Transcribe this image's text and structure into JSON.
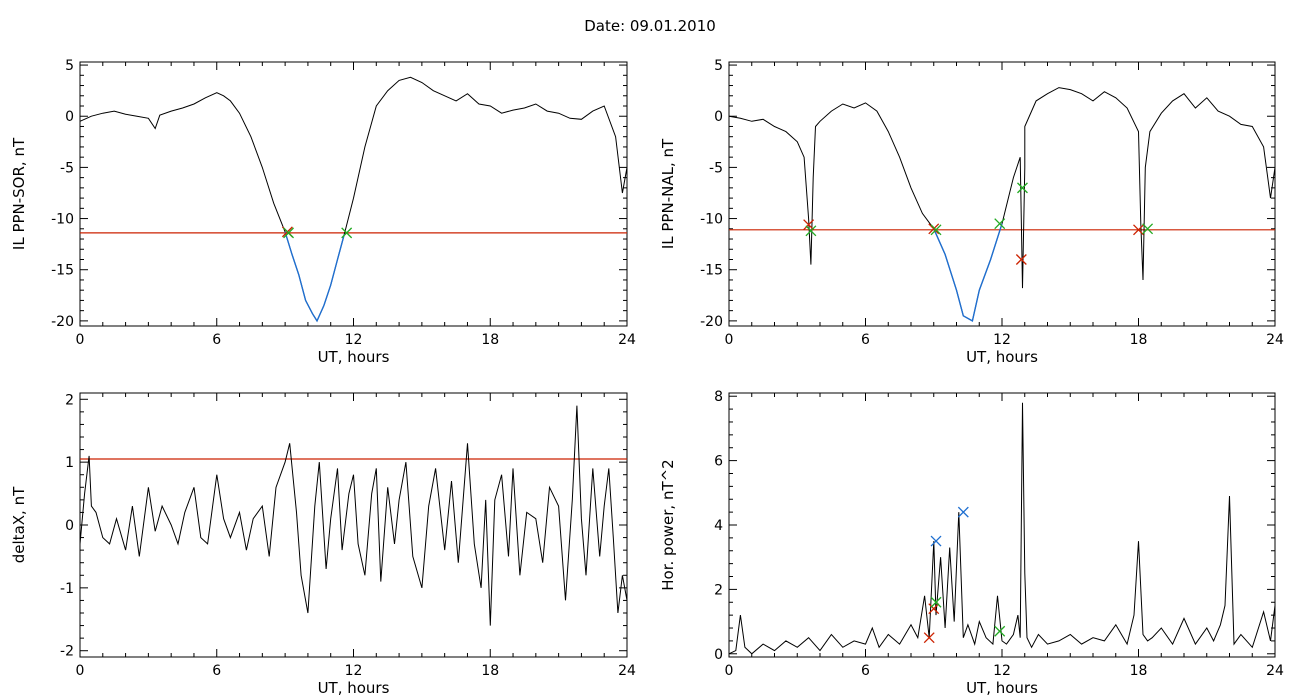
{
  "header": {
    "date_label": "Date:  09.01.2010"
  },
  "colors": {
    "data": "#000000",
    "threshold": "#cc2200",
    "highlight": "#1f6fd0",
    "cross_red": "#cc2200",
    "cross_green": "#22aa22",
    "cross_blue": "#1f6fd0"
  },
  "chart_data": [
    {
      "type": "line",
      "title": "",
      "xlabel": "UT, hours",
      "ylabel": "IL PPN-SOR, nT",
      "xlim": [
        0,
        24
      ],
      "ylim": [
        -20.5,
        5.3
      ],
      "xticks": [
        0,
        6,
        12,
        18,
        24
      ],
      "yticks": [
        -20,
        -15,
        -10,
        -5,
        0,
        5
      ],
      "threshold": -11.4,
      "series": [
        {
          "x": [
            0,
            0.5,
            1,
            1.5,
            2,
            2.5,
            3,
            3.3,
            3.5,
            4,
            4.5,
            5,
            5.5,
            6,
            6.3,
            6.6,
            7,
            7.5,
            8,
            8.5,
            9,
            9.3,
            9.6,
            9.9,
            10.2,
            10.4,
            10.7,
            11,
            11.3,
            11.6,
            12,
            12.5,
            13,
            13.5,
            14,
            14.5,
            15,
            15.5,
            16,
            16.5,
            17,
            17.5,
            18,
            18.5,
            19,
            19.5,
            20,
            20.5,
            21,
            21.5,
            22,
            22.5,
            23,
            23.5,
            23.8,
            24
          ],
          "y": [
            -0.5,
            0,
            0.3,
            0.5,
            0.2,
            0,
            -0.2,
            -1.2,
            0.1,
            0.5,
            0.8,
            1.2,
            1.8,
            2.3,
            2,
            1.5,
            0.3,
            -2,
            -5,
            -8.5,
            -11.3,
            -13.5,
            -15.5,
            -18,
            -19.3,
            -20,
            -18.5,
            -16.5,
            -14,
            -11.5,
            -8,
            -3,
            1,
            2.5,
            3.5,
            3.8,
            3.3,
            2.5,
            2,
            1.5,
            2.2,
            1.2,
            1,
            0.3,
            0.6,
            0.8,
            1.2,
            0.5,
            0.3,
            -0.2,
            -0.3,
            0.5,
            1,
            -2,
            -7.5,
            -5
          ]
        }
      ],
      "highlight_range": [
        9,
        11.7
      ],
      "markers": [
        {
          "x": 9.1,
          "y": -11.3,
          "color": "cross_red"
        },
        {
          "x": 9.15,
          "y": -11.4,
          "color": "cross_green"
        },
        {
          "x": 11.7,
          "y": -11.4,
          "color": "cross_green"
        }
      ]
    },
    {
      "type": "line",
      "title": "",
      "xlabel": "UT, hours",
      "ylabel": "IL PPN-NAL, nT",
      "xlim": [
        0,
        24
      ],
      "ylim": [
        -20.5,
        5.3
      ],
      "xticks": [
        0,
        6,
        12,
        18,
        24
      ],
      "yticks": [
        -20,
        -15,
        -10,
        -5,
        0,
        5
      ],
      "threshold": -11.1,
      "series": [
        {
          "x": [
            0,
            0.5,
            1,
            1.5,
            2,
            2.5,
            3,
            3.3,
            3.5,
            3.6,
            3.7,
            3.8,
            4,
            4.5,
            5,
            5.5,
            6,
            6.5,
            7,
            7.5,
            8,
            8.5,
            9,
            9.5,
            10,
            10.3,
            10.7,
            11,
            11.5,
            12,
            12.5,
            12.8,
            12.9,
            13,
            13,
            13.5,
            14,
            14.5,
            15,
            15.5,
            16,
            16.5,
            17,
            17.5,
            18,
            18.1,
            18.2,
            18.3,
            18.5,
            19,
            19.5,
            20,
            20.5,
            21,
            21.5,
            22,
            22.5,
            23,
            23.5,
            23.8,
            24
          ],
          "y": [
            0,
            -0.2,
            -0.5,
            -0.3,
            -1,
            -1.5,
            -2.5,
            -4,
            -10,
            -14.5,
            -6,
            -1,
            -0.5,
            0.5,
            1.2,
            0.8,
            1.3,
            0.5,
            -1.5,
            -4,
            -7,
            -9.5,
            -11,
            -13.5,
            -17,
            -19.5,
            -20,
            -17,
            -14,
            -10.5,
            -6,
            -4,
            -16.8,
            -5,
            -1,
            1.5,
            2.2,
            2.8,
            2.6,
            2.2,
            1.5,
            2.4,
            1.8,
            0.8,
            -1.5,
            -10.5,
            -16,
            -5,
            -1.5,
            0.3,
            1.5,
            2.2,
            0.8,
            1.8,
            0.5,
            0,
            -0.8,
            -1,
            -3,
            -8,
            -5
          ]
        }
      ],
      "highlight_range": [
        9,
        12
      ],
      "markers": [
        {
          "x": 3.5,
          "y": -10.6,
          "color": "cross_red"
        },
        {
          "x": 3.6,
          "y": -11.2,
          "color": "cross_green"
        },
        {
          "x": 9.0,
          "y": -11.0,
          "color": "cross_red"
        },
        {
          "x": 9.1,
          "y": -11.1,
          "color": "cross_green"
        },
        {
          "x": 11.9,
          "y": -10.5,
          "color": "cross_green"
        },
        {
          "x": 12.9,
          "y": -7.0,
          "color": "cross_green"
        },
        {
          "x": 12.85,
          "y": -14.0,
          "color": "cross_red"
        },
        {
          "x": 18.0,
          "y": -11.1,
          "color": "cross_red"
        },
        {
          "x": 18.4,
          "y": -11.0,
          "color": "cross_green"
        }
      ]
    },
    {
      "type": "line",
      "title": "",
      "xlabel": "UT, hours",
      "ylabel": "deltaX, nT",
      "xlim": [
        0,
        24
      ],
      "ylim": [
        -2.1,
        2.1
      ],
      "xticks": [
        0,
        6,
        12,
        18,
        24
      ],
      "yticks": [
        -2,
        -1,
        0,
        1,
        2
      ],
      "threshold": 1.05,
      "series": [
        {
          "x": [
            0,
            0.2,
            0.4,
            0.5,
            0.7,
            1,
            1.3,
            1.6,
            2,
            2.3,
            2.6,
            3,
            3.3,
            3.6,
            4,
            4.3,
            4.6,
            5,
            5.3,
            5.6,
            6,
            6.3,
            6.6,
            7,
            7.3,
            7.6,
            8,
            8.3,
            8.6,
            9,
            9.2,
            9.5,
            9.7,
            10,
            10.3,
            10.5,
            10.8,
            11,
            11.3,
            11.5,
            11.8,
            12,
            12.2,
            12.5,
            12.8,
            13,
            13.2,
            13.5,
            13.8,
            14,
            14.3,
            14.6,
            15,
            15.3,
            15.6,
            16,
            16.3,
            16.6,
            17,
            17.3,
            17.6,
            17.8,
            18,
            18.2,
            18.5,
            18.8,
            19,
            19.3,
            19.6,
            20,
            20.3,
            20.6,
            21,
            21.3,
            21.6,
            21.8,
            22,
            22.2,
            22.5,
            22.8,
            23,
            23.2,
            23.4,
            23.6,
            23.8,
            24
          ],
          "y": [
            -0.3,
            0.5,
            1.1,
            0.3,
            0.2,
            -0.2,
            -0.3,
            0.1,
            -0.4,
            0.3,
            -0.5,
            0.6,
            -0.1,
            0.3,
            0,
            -0.3,
            0.2,
            0.6,
            -0.2,
            -0.3,
            0.8,
            0.1,
            -0.2,
            0.2,
            -0.4,
            0.1,
            0.3,
            -0.5,
            0.6,
            1.0,
            1.3,
            0.2,
            -0.8,
            -1.4,
            0.3,
            1.0,
            -0.7,
            0.1,
            0.9,
            -0.4,
            0.5,
            0.8,
            -0.3,
            -0.8,
            0.5,
            0.9,
            -0.9,
            0.6,
            -0.3,
            0.4,
            1.0,
            -0.5,
            -1.0,
            0.3,
            0.9,
            -0.4,
            0.7,
            -0.6,
            1.3,
            -0.3,
            -1.0,
            0.4,
            -1.6,
            0.4,
            0.8,
            -0.5,
            0.9,
            -0.8,
            0.2,
            0.1,
            -0.6,
            0.6,
            0.3,
            -1.2,
            0.4,
            1.9,
            0.1,
            -0.8,
            0.9,
            -0.5,
            0.3,
            0.9,
            -0.2,
            -1.4,
            -0.8,
            -1.2
          ]
        }
      ],
      "highlight_range": null,
      "markers": []
    },
    {
      "type": "line",
      "title": "",
      "xlabel": "UT, hours",
      "ylabel": "Hor. power, nT^2",
      "xlim": [
        0,
        24
      ],
      "ylim": [
        -0.1,
        8.1
      ],
      "xticks": [
        0,
        6,
        12,
        18,
        24
      ],
      "yticks": [
        0,
        2,
        4,
        6,
        8
      ],
      "threshold": null,
      "series": [
        {
          "x": [
            0,
            0.3,
            0.5,
            0.7,
            1,
            1.5,
            2,
            2.5,
            3,
            3.5,
            4,
            4.5,
            5,
            5.5,
            6,
            6.3,
            6.6,
            7,
            7.5,
            8,
            8.3,
            8.6,
            8.8,
            9,
            9.1,
            9.3,
            9.5,
            9.7,
            9.9,
            10.1,
            10.3,
            10.5,
            10.8,
            11,
            11.3,
            11.6,
            11.8,
            12,
            12.2,
            12.5,
            12.7,
            12.8,
            12.9,
            13,
            13.1,
            13.3,
            13.6,
            14,
            14.5,
            15,
            15.5,
            16,
            16.5,
            17,
            17.5,
            17.8,
            18,
            18.2,
            18.4,
            18.6,
            19,
            19.5,
            20,
            20.5,
            21,
            21.3,
            21.6,
            21.8,
            22,
            22.2,
            22.5,
            23,
            23.5,
            23.8,
            24
          ],
          "y": [
            0,
            0.1,
            1.2,
            0.2,
            0,
            0.3,
            0.1,
            0.4,
            0.2,
            0.5,
            0.1,
            0.6,
            0.2,
            0.4,
            0.3,
            0.8,
            0.2,
            0.6,
            0.3,
            0.9,
            0.5,
            1.8,
            0.5,
            3.5,
            1.2,
            3.0,
            0.8,
            3.3,
            1.0,
            4.4,
            0.5,
            0.9,
            0.3,
            1.0,
            0.5,
            0.3,
            1.8,
            0.4,
            0.3,
            0.6,
            1.2,
            0.5,
            7.8,
            2.5,
            0.5,
            0.2,
            0.6,
            0.3,
            0.4,
            0.6,
            0.3,
            0.5,
            0.4,
            0.9,
            0.3,
            1.2,
            3.5,
            0.6,
            0.4,
            0.5,
            0.8,
            0.3,
            1.1,
            0.3,
            0.8,
            0.4,
            0.9,
            1.5,
            4.9,
            0.3,
            0.6,
            0.2,
            1.3,
            0.4,
            1.5
          ]
        }
      ],
      "highlight_range": null,
      "markers": [
        {
          "x": 8.8,
          "y": 0.5,
          "color": "cross_red"
        },
        {
          "x": 9.0,
          "y": 1.4,
          "color": "cross_red"
        },
        {
          "x": 9.1,
          "y": 1.6,
          "color": "cross_green"
        },
        {
          "x": 9.1,
          "y": 3.5,
          "color": "cross_blue"
        },
        {
          "x": 10.3,
          "y": 4.4,
          "color": "cross_blue"
        },
        {
          "x": 11.9,
          "y": 0.7,
          "color": "cross_green"
        }
      ]
    }
  ]
}
